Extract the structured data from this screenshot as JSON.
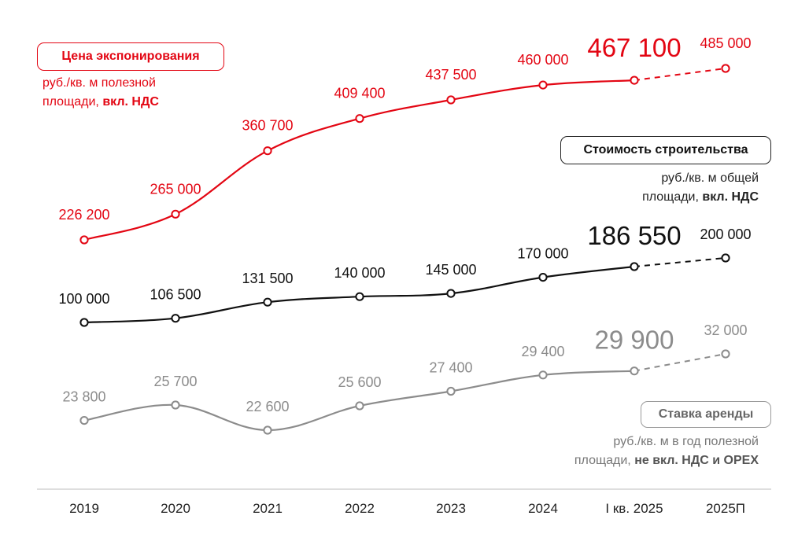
{
  "chart_data": {
    "type": "line",
    "categories": [
      "2019",
      "2020",
      "2021",
      "2022",
      "2023",
      "2024",
      "I кв. 2025",
      "2025П"
    ],
    "series": [
      {
        "key": "price",
        "name": "Цена экспонирования",
        "unit_line1": "руб./кв. м полезной",
        "unit_line2_plain": "площади, ",
        "unit_line2_bold": "вкл. НДС",
        "color": "#e30613",
        "values": [
          226200,
          265000,
          360700,
          409400,
          437500,
          460000,
          467100,
          485000
        ],
        "labels": [
          "226 200",
          "265 000",
          "360 700",
          "409 400",
          "437 500",
          "460 000",
          "467 100",
          "485 000"
        ]
      },
      {
        "key": "cost",
        "name": "Стоимость строительства",
        "unit_line1": "руб./кв. м общей",
        "unit_line2_plain": "площади, ",
        "unit_line2_bold": "вкл. НДС",
        "color": "#111111",
        "values": [
          100000,
          106500,
          131500,
          140000,
          145000,
          170000,
          186550,
          200000
        ],
        "labels": [
          "100 000",
          "106 500",
          "131 500",
          "140 000",
          "145 000",
          "170 000",
          "186 550",
          "200 000"
        ]
      },
      {
        "key": "rent",
        "name": "Ставка аренды",
        "unit_line1": "руб./кв. м в год полезной",
        "unit_line2_plain": "площади, ",
        "unit_line2_bold": "не вкл. НДС и OPEX",
        "color": "#8c8c8c",
        "values": [
          23800,
          25700,
          22600,
          25600,
          27400,
          29400,
          29900,
          32000
        ],
        "labels": [
          "23 800",
          "25 700",
          "22 600",
          "25 600",
          "27 400",
          "29 400",
          "29 900",
          "32 000"
        ]
      }
    ],
    "highlight_index": 6,
    "forecast_from_index": 6,
    "grid": false
  }
}
